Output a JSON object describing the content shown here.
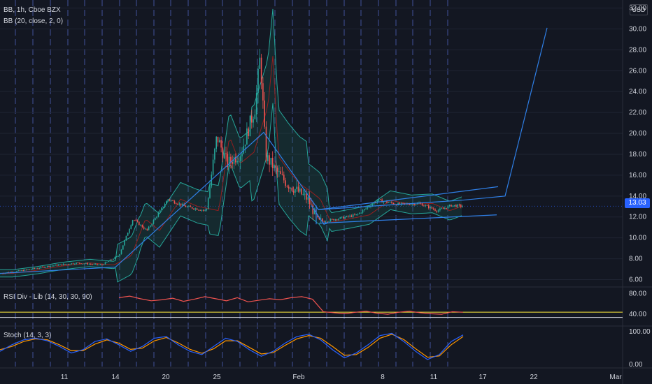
{
  "header": {
    "symbol_line": "BB, 1h, Cboe BZX",
    "indicator_bb": "BB (20, close, 2, 0)",
    "currency_button": "USD"
  },
  "last_price": "13.03",
  "colors": {
    "background": "#131722",
    "bull": "#26a69a",
    "bear": "#ef5350",
    "drawing": "#2f7fe6",
    "rsi": "#ef5350",
    "stoch_k": "#2962ff",
    "stoch_d": "#ff9800",
    "band_line": "#ffeb3b",
    "price_tag": "#2962ff"
  },
  "panes": {
    "rsi_label": "RSI Div - Lib (14, 30, 30, 90)",
    "stoch_label": "Stoch (14, 3, 3)"
  },
  "price_axis": [
    "32.00",
    "30.00",
    "28.00",
    "26.00",
    "24.00",
    "22.00",
    "20.00",
    "18.00",
    "16.00",
    "14.00",
    "12.00",
    "10.00",
    "8.00",
    "6.00"
  ],
  "rsi_axis": [
    "80.00",
    "40.00"
  ],
  "stoch_axis": [
    "100.00",
    "0.00"
  ],
  "time_axis": [
    "11",
    "14",
    "20",
    "25",
    "Feb",
    "8",
    "11",
    "17",
    "22",
    "Mar"
  ],
  "chart_data": {
    "type": "candlestick",
    "symbol": "BB",
    "interval": "1h",
    "exchange": "Cboe BZX",
    "ylim": [
      5.5,
      32.5
    ],
    "x_labels": [
      "11",
      "14",
      "20",
      "25",
      "Feb",
      "8",
      "11",
      "17",
      "22",
      "Mar"
    ],
    "last_close": 13.03,
    "price_path": [
      {
        "t": 0,
        "p": 6.6
      },
      {
        "t": 35,
        "p": 6.9
      },
      {
        "t": 70,
        "p": 7.3
      },
      {
        "t": 110,
        "p": 7.6
      },
      {
        "t": 145,
        "p": 7.4
      },
      {
        "t": 170,
        "p": 8.3
      },
      {
        "t": 190,
        "p": 11.8
      },
      {
        "t": 210,
        "p": 10.7
      },
      {
        "t": 240,
        "p": 13.7
      },
      {
        "t": 265,
        "p": 13.0
      },
      {
        "t": 295,
        "p": 12.6
      },
      {
        "t": 310,
        "p": 19.7
      },
      {
        "t": 325,
        "p": 17.1
      },
      {
        "t": 345,
        "p": 18.2
      },
      {
        "t": 365,
        "p": 22.6
      },
      {
        "t": 372,
        "p": 27.4
      },
      {
        "t": 380,
        "p": 17.8
      },
      {
        "t": 395,
        "p": 16.4
      },
      {
        "t": 410,
        "p": 15.2
      },
      {
        "t": 425,
        "p": 14.5
      },
      {
        "t": 440,
        "p": 13.7
      },
      {
        "t": 455,
        "p": 11.5
      },
      {
        "t": 480,
        "p": 11.8
      },
      {
        "t": 510,
        "p": 12.2
      },
      {
        "t": 540,
        "p": 13.6
      },
      {
        "t": 570,
        "p": 13.2
      },
      {
        "t": 600,
        "p": 13.3
      },
      {
        "t": 625,
        "p": 12.6
      },
      {
        "t": 645,
        "p": 13.1
      },
      {
        "t": 662,
        "p": 13.03
      }
    ],
    "bollinger": {
      "length": 20,
      "source": "close",
      "mult": 2,
      "offset": 0
    },
    "rsi": {
      "params": "14, 30, 30, 90",
      "levels": [
        80,
        40
      ],
      "values": [
        72,
        75,
        70,
        66,
        68,
        71,
        65,
        69,
        74,
        70,
        66,
        72,
        64,
        67,
        70,
        68,
        72,
        74,
        69,
        45,
        43,
        41,
        44,
        46,
        42,
        40,
        44,
        46,
        43,
        41,
        40,
        45,
        44
      ]
    },
    "stochastic": {
      "params": "14, 3, 3",
      "k": [
        40,
        60,
        75,
        80,
        72,
        55,
        35,
        45,
        70,
        78,
        60,
        40,
        55,
        80,
        85,
        60,
        40,
        30,
        55,
        80,
        70,
        45,
        25,
        40,
        65,
        85,
        92,
        75,
        45,
        20,
        35,
        60,
        88,
        95,
        70,
        40,
        15,
        30,
        70,
        90
      ],
      "d": [
        45,
        55,
        70,
        78,
        75,
        60,
        42,
        42,
        62,
        75,
        65,
        46,
        50,
        72,
        82,
        66,
        46,
        34,
        48,
        72,
        72,
        52,
        32,
        36,
        58,
        78,
        88,
        80,
        55,
        28,
        30,
        52,
        80,
        92,
        76,
        48,
        22,
        26,
        60,
        85
      ]
    }
  }
}
